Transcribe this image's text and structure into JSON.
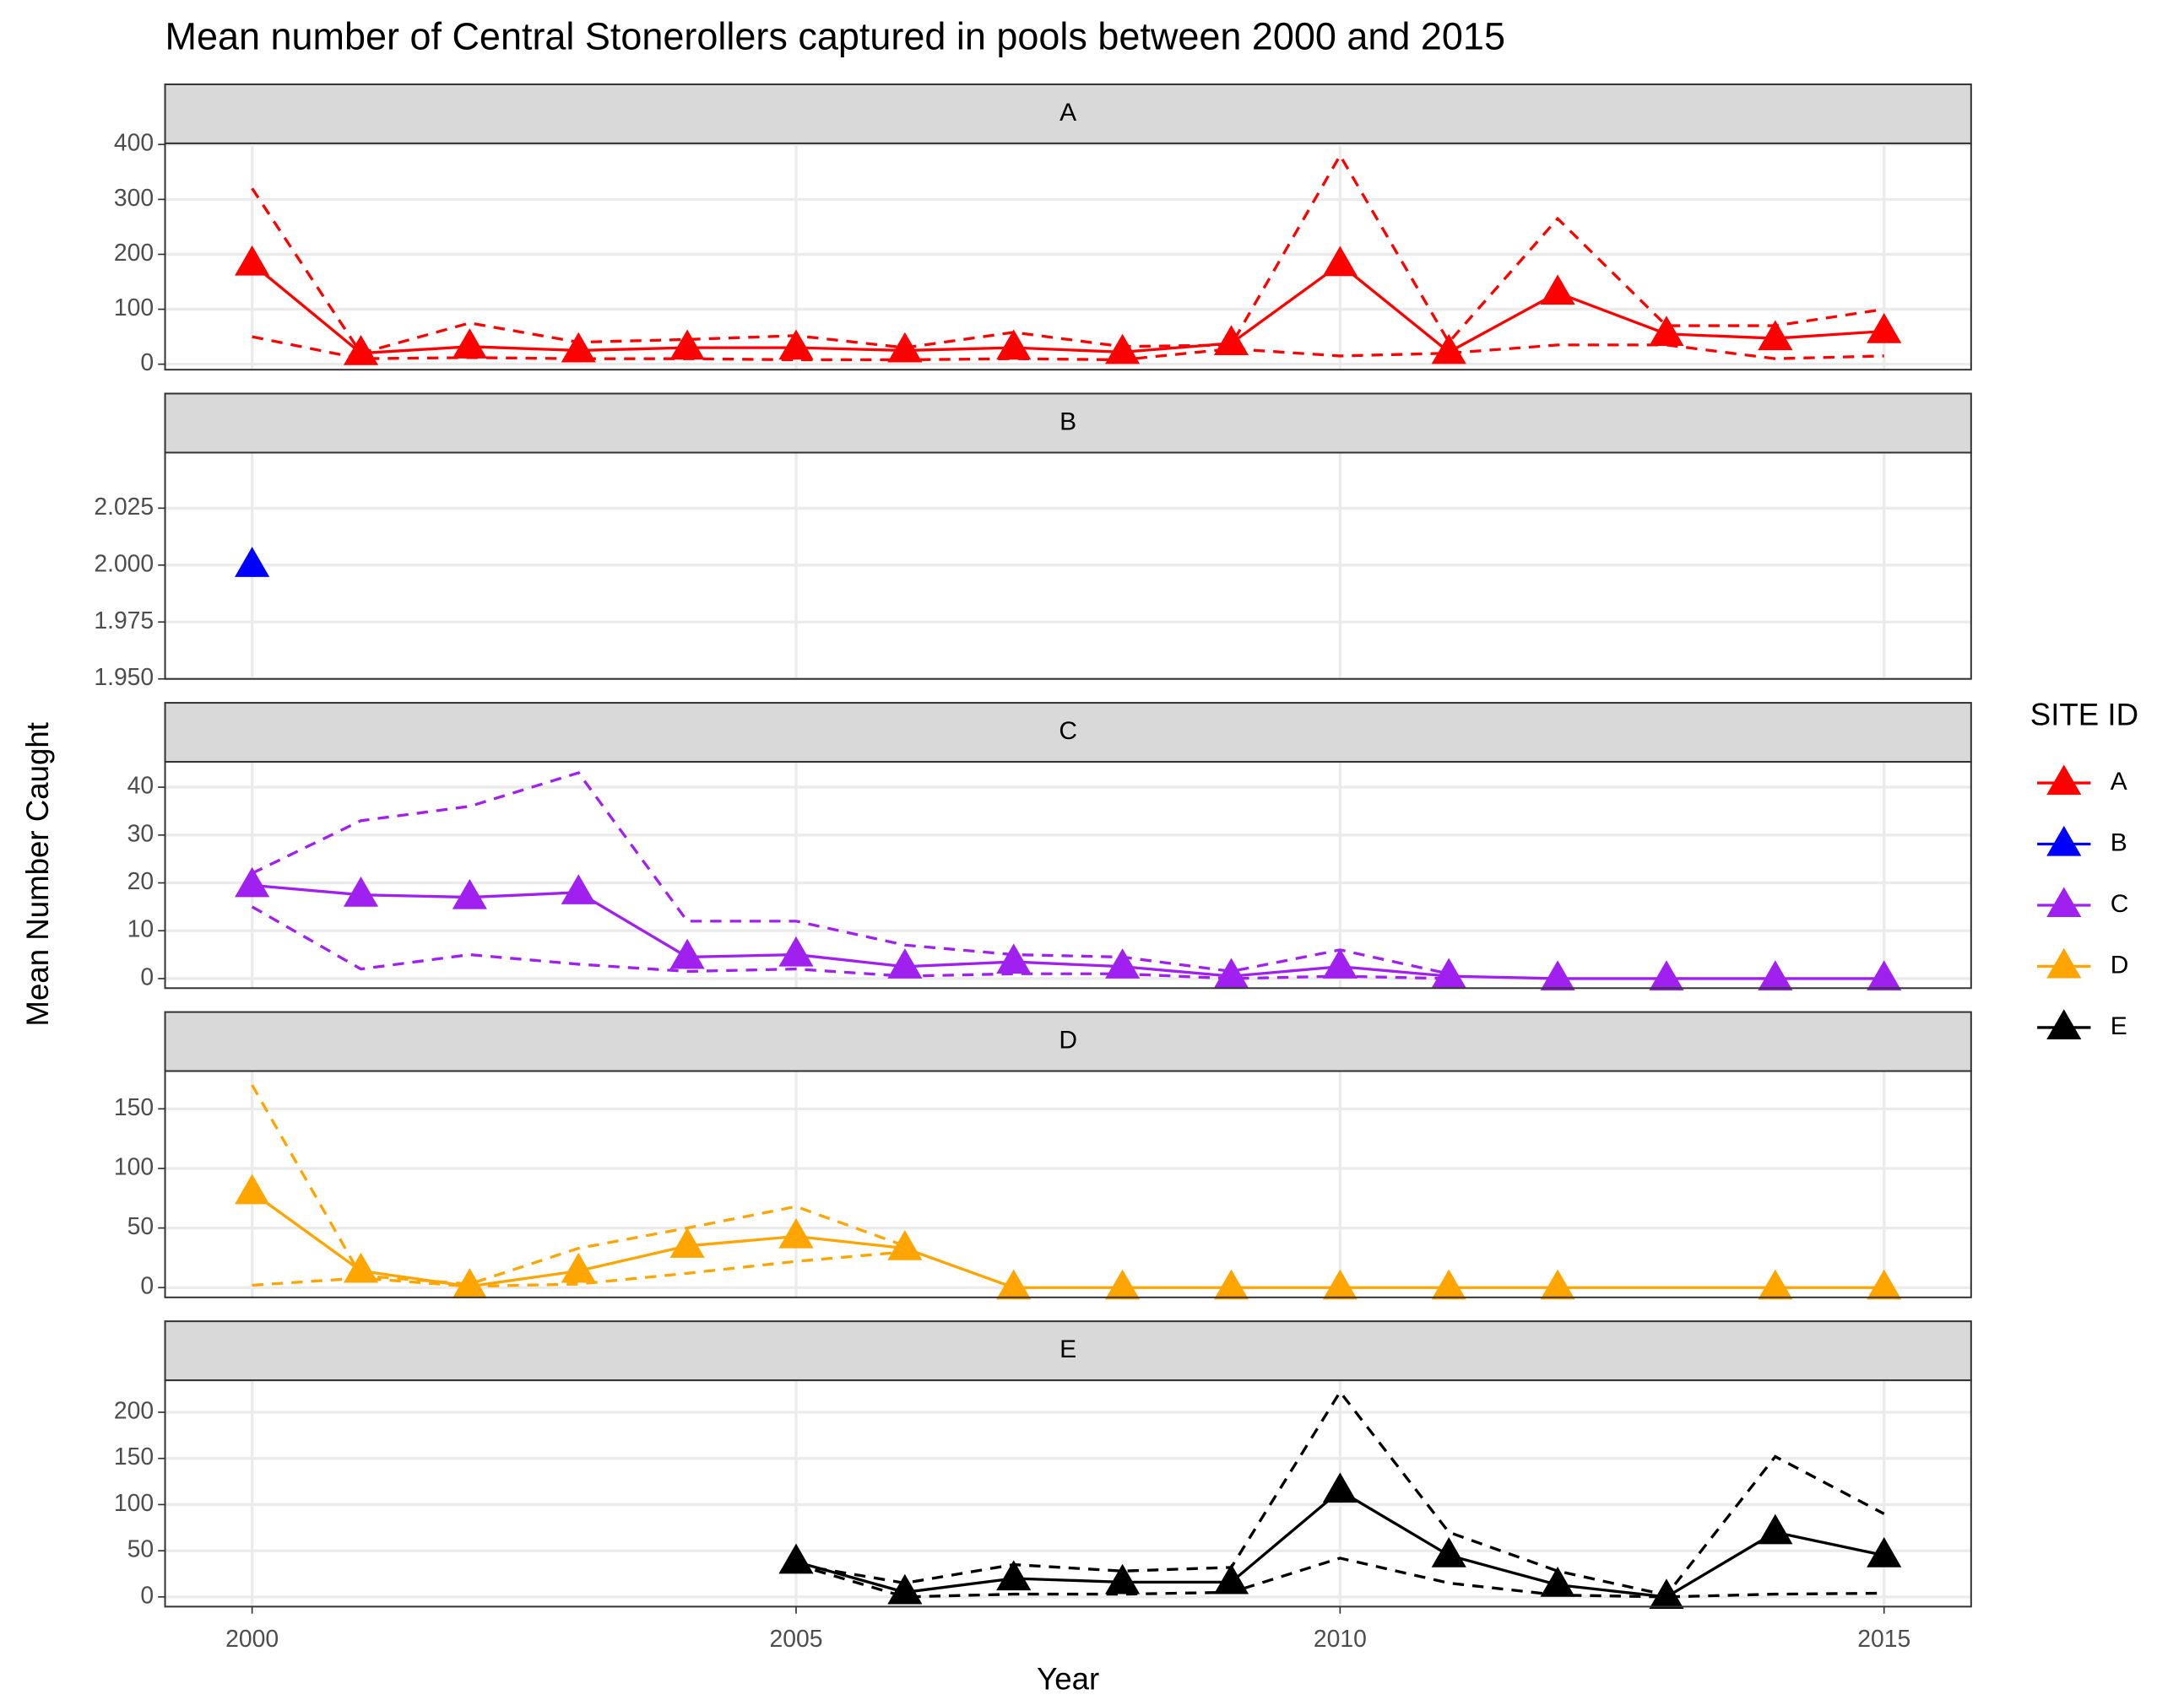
{
  "chart_data": {
    "type": "line",
    "title": "Mean number of Central Stonerollers captured in pools between 2000 and 2015",
    "x_label": "Year",
    "y_label": "Mean Number Caught",
    "legend_title": "SITE ID",
    "xlim": [
      1999.2,
      2015.8
    ],
    "xticks": [
      2000,
      2005,
      2010,
      2015
    ],
    "grid": true,
    "facets": [
      {
        "label": "A",
        "name": "A",
        "color": "#ff0000",
        "x": [
          2000,
          2001,
          2002,
          2003,
          2004,
          2005,
          2006,
          2007,
          2008,
          2009,
          2010,
          2011,
          2012,
          2013,
          2014,
          2015
        ],
        "values": [
          183,
          20,
          32,
          25,
          30,
          30,
          25,
          30,
          22,
          38,
          182,
          22,
          130,
          55,
          47,
          60
        ],
        "upper": [
          320,
          20,
          75,
          40,
          45,
          52,
          30,
          58,
          32,
          35,
          380,
          40,
          265,
          70,
          70,
          100
        ],
        "lower": [
          50,
          10,
          12,
          10,
          10,
          8,
          8,
          10,
          8,
          28,
          15,
          20,
          35,
          35,
          10,
          15
        ],
        "ylim": [
          -10,
          402
        ],
        "yticks": [
          0,
          100,
          200,
          300,
          400
        ]
      },
      {
        "label": "B",
        "name": "B",
        "color": "#0000ff",
        "x": [
          2000
        ],
        "values": [
          2
        ],
        "upper": [
          null
        ],
        "lower": [
          null
        ],
        "ylim": [
          1.95,
          2.0494
        ],
        "yticks": [
          {
            "value": 1.95,
            "label": "1.950"
          },
          1.975,
          {
            "value": 2,
            "label": "2.000"
          },
          2.025
        ]
      },
      {
        "label": "C",
        "name": "C",
        "color": "#a020f0",
        "x": [
          2000,
          2001,
          2002,
          2003,
          2004,
          2005,
          2006,
          2007,
          2008,
          2009,
          2010,
          2011,
          2012,
          2013,
          2014,
          2015
        ],
        "values": [
          19.5,
          17.5,
          17,
          18,
          4.5,
          5,
          2.5,
          3.5,
          2.5,
          0.5,
          2.5,
          0.5,
          0,
          0,
          0,
          0
        ],
        "upper": [
          22,
          33,
          36,
          43,
          12,
          12,
          7,
          5,
          4.5,
          1.5,
          6,
          1,
          null,
          null,
          null,
          null
        ],
        "lower": [
          15,
          2,
          5,
          3,
          1.5,
          2,
          0.5,
          1,
          1,
          0,
          0.5,
          0,
          null,
          null,
          null,
          null
        ],
        "ylim": [
          -2,
          45.3
        ],
        "yticks": [
          0,
          10,
          20,
          30,
          40
        ]
      },
      {
        "label": "D",
        "name": "D",
        "color": "#ffa500",
        "x": [
          2000,
          2001,
          2002,
          2003,
          2004,
          2005,
          2006,
          2007,
          2008,
          2009,
          2010,
          2011,
          2012,
          2014,
          2015
        ],
        "values": [
          80,
          14,
          1,
          14,
          35,
          43,
          33,
          0,
          0,
          0,
          0,
          0,
          0,
          0,
          0
        ],
        "upper": [
          170,
          10,
          3,
          33,
          50,
          68,
          35,
          null,
          null,
          null,
          null,
          null,
          null,
          null,
          null
        ],
        "lower": [
          2,
          8,
          1,
          3,
          12,
          22,
          30,
          null,
          null,
          null,
          null,
          null,
          null,
          null,
          null
        ],
        "ylim": [
          -8.2,
          181.7
        ],
        "yticks": [
          0,
          50,
          100,
          150
        ]
      },
      {
        "label": "E",
        "name": "E",
        "color": "#000000",
        "x": [
          2005,
          2006,
          2007,
          2008,
          2009,
          2010,
          2011,
          2012,
          2013,
          2014,
          2015
        ],
        "values": [
          38,
          5,
          20,
          16,
          16,
          115,
          45,
          13,
          0,
          70,
          45
        ],
        "upper": [
          35,
          15,
          35,
          28,
          32,
          222,
          70,
          28,
          2,
          152,
          90
        ],
        "lower": [
          35,
          0,
          3,
          3,
          5,
          42,
          15,
          2,
          0,
          3,
          4
        ],
        "ylim": [
          -10.5,
          234.6
        ],
        "yticks": [
          0,
          50,
          100,
          150,
          200
        ]
      }
    ]
  }
}
